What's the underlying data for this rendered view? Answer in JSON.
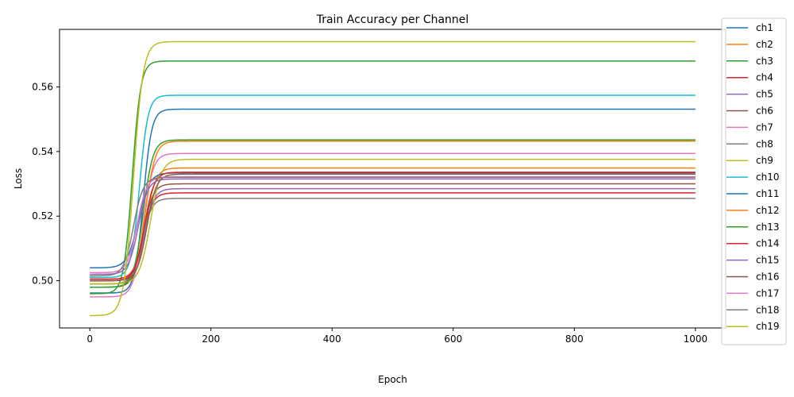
{
  "chart_data": {
    "type": "line",
    "title": "Train Accuracy per Channel",
    "xlabel": "Epoch",
    "ylabel": "Loss",
    "xlim": [
      -50,
      1050
    ],
    "ylim": [
      0.4854,
      0.5778
    ],
    "xticks": [
      0,
      200,
      400,
      600,
      800,
      1000
    ],
    "xtick_labels": [
      "0",
      "200",
      "400",
      "600",
      "800",
      "1000"
    ],
    "yticks": [
      0.5,
      0.52,
      0.54,
      0.56
    ],
    "ytick_labels": [
      "0.50",
      "0.52",
      "0.54",
      "0.56"
    ],
    "grid": false,
    "legend_position": "right",
    "series": [
      {
        "name": "ch1",
        "color": "#1f77b4",
        "start": 0.4962,
        "end": 0.5531,
        "midpoint": 88,
        "steepness": 7
      },
      {
        "name": "ch2",
        "color": "#ff7f0e",
        "start": 0.499,
        "end": 0.5349,
        "midpoint": 92,
        "steepness": 8
      },
      {
        "name": "ch3",
        "color": "#2ca02c",
        "start": 0.496,
        "end": 0.568,
        "midpoint": 70,
        "steepness": 7
      },
      {
        "name": "ch4",
        "color": "#d62728",
        "start": 0.5005,
        "end": 0.5272,
        "midpoint": 88,
        "steepness": 8
      },
      {
        "name": "ch5",
        "color": "#9467bd",
        "start": 0.5,
        "end": 0.5285,
        "midpoint": 90,
        "steepness": 8
      },
      {
        "name": "ch6",
        "color": "#8c564b",
        "start": 0.498,
        "end": 0.53,
        "midpoint": 88,
        "steepness": 8
      },
      {
        "name": "ch7",
        "color": "#e377c2",
        "start": 0.495,
        "end": 0.5394,
        "midpoint": 88,
        "steepness": 8
      },
      {
        "name": "ch8",
        "color": "#7f7f7f",
        "start": 0.499,
        "end": 0.5255,
        "midpoint": 86,
        "steepness": 8
      },
      {
        "name": "ch9",
        "color": "#bcbd22",
        "start": 0.499,
        "end": 0.5376,
        "midpoint": 100,
        "steepness": 9
      },
      {
        "name": "ch10",
        "color": "#17becf",
        "start": 0.501,
        "end": 0.5574,
        "midpoint": 82,
        "steepness": 7
      },
      {
        "name": "ch11",
        "color": "#1f77b4",
        "start": 0.504,
        "end": 0.5334,
        "midpoint": 80,
        "steepness": 9
      },
      {
        "name": "ch12",
        "color": "#ff7f0e",
        "start": 0.5,
        "end": 0.5432,
        "midpoint": 92,
        "steepness": 8
      },
      {
        "name": "ch13",
        "color": "#2ca02c",
        "start": 0.498,
        "end": 0.5436,
        "midpoint": 88,
        "steepness": 8
      },
      {
        "name": "ch14",
        "color": "#d62728",
        "start": 0.5,
        "end": 0.5336,
        "midpoint": 90,
        "steepness": 8
      },
      {
        "name": "ch15",
        "color": "#9467bd",
        "start": 0.502,
        "end": 0.5315,
        "midpoint": 80,
        "steepness": 8
      },
      {
        "name": "ch16",
        "color": "#8c564b",
        "start": 0.5,
        "end": 0.533,
        "midpoint": 94,
        "steepness": 8
      },
      {
        "name": "ch17",
        "color": "#e377c2",
        "start": 0.5025,
        "end": 0.5322,
        "midpoint": 78,
        "steepness": 8
      },
      {
        "name": "ch18",
        "color": "#7f7f7f",
        "start": 0.5015,
        "end": 0.532,
        "midpoint": 72,
        "steepness": 8
      },
      {
        "name": "ch19",
        "color": "#bcbd22",
        "start": 0.4892,
        "end": 0.574,
        "midpoint": 72,
        "steepness": 8
      }
    ]
  }
}
